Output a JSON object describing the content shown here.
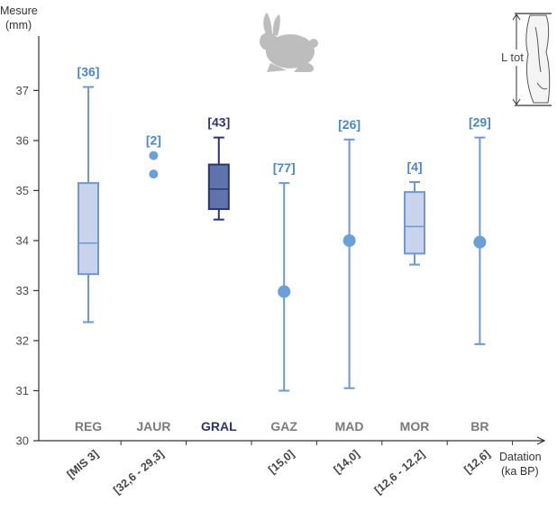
{
  "chart_data": {
    "type": "boxplot",
    "ylabel_line1": "Mesure",
    "ylabel_line2": "(mm)",
    "xlabel_line1": "Datation",
    "xlabel_line2": "(ka BP)",
    "ylim": [
      30,
      37.8
    ],
    "yticks": [
      30,
      31,
      32,
      33,
      34,
      35,
      36,
      37
    ],
    "inset_label": "L tot",
    "colors": {
      "light_fill": "#c9d3ec",
      "light_stroke": "#6f98cf",
      "dark_fill": "#5f73ad",
      "dark_stroke": "#2c3470",
      "count_light": "#4a86c8",
      "count_dark": "#2c3470",
      "category_grey": "#7a7a7a",
      "axis": "#333333",
      "silhouette": "#bdbdbd"
    },
    "groups": [
      {
        "category": "REG",
        "date": "[MIS 3]",
        "n": "[36]",
        "kind": "box",
        "highlight": false,
        "min": 32.37,
        "q1": 33.33,
        "median": 33.95,
        "q3": 35.15,
        "max": 37.07
      },
      {
        "category": "JAUR",
        "date": "[32,6 - 29,3]",
        "n": "[2]",
        "kind": "points",
        "highlight": false,
        "points": [
          35.7,
          35.33
        ]
      },
      {
        "category": "GRAL",
        "date": "",
        "n": "[43]",
        "kind": "box",
        "highlight": true,
        "min": 34.42,
        "q1": 34.63,
        "median": 35.03,
        "q3": 35.52,
        "max": 36.06
      },
      {
        "category": "GAZ",
        "date": "[15,0]",
        "n": "[77]",
        "kind": "range",
        "highlight": false,
        "min": 31.0,
        "mean": 32.98,
        "max": 35.15
      },
      {
        "category": "MAD",
        "date": "[14,0]",
        "n": "[26]",
        "kind": "range",
        "highlight": false,
        "min": 31.05,
        "mean": 34.0,
        "max": 36.02
      },
      {
        "category": "MOR",
        "date": "[12,6 - 12,2]",
        "n": "[4]",
        "kind": "box",
        "highlight": false,
        "min": 33.52,
        "q1": 33.74,
        "median": 34.28,
        "q3": 34.97,
        "max": 35.17
      },
      {
        "category": "BR",
        "date": "[12,6]",
        "n": "[29]",
        "kind": "range",
        "highlight": false,
        "min": 31.93,
        "mean": 33.97,
        "max": 36.06
      }
    ]
  }
}
